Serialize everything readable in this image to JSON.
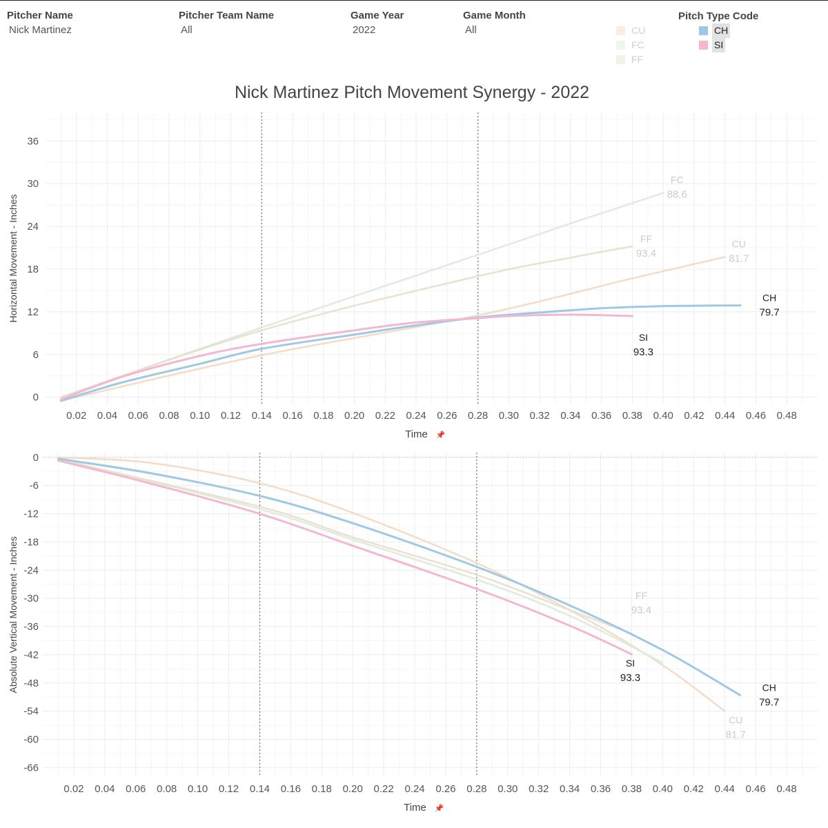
{
  "filters": [
    {
      "label": "Pitcher Name",
      "value": "Nick Martinez"
    },
    {
      "label": "Pitcher Team Name",
      "value": "All"
    },
    {
      "label": "Game Year",
      "value": "2022"
    },
    {
      "label": "Game Month",
      "value": "All"
    }
  ],
  "legend": {
    "title": "Pitch Type Code",
    "items": [
      {
        "code": "CU",
        "color": "#f2d9c2",
        "selected": false
      },
      {
        "code": "FC",
        "color": "#dceadb",
        "selected": false
      },
      {
        "code": "FF",
        "color": "#e7dfcd",
        "selected": false
      },
      {
        "code": "CH",
        "color": "#9fc8e4",
        "selected": true
      },
      {
        "code": "SI",
        "color": "#f3b7cf",
        "selected": true
      }
    ]
  },
  "pin_glyph": "📌",
  "chart_data": [
    {
      "type": "line",
      "title": "Nick Martinez Pitch Movement Synergy - 2022",
      "xlabel": "Time",
      "ylabel": "Horizontal Movement - Inches",
      "xlim": [
        0,
        0.5
      ],
      "ylim": [
        -1,
        40
      ],
      "xticks": [
        "0.02",
        "0.04",
        "0.06",
        "0.08",
        "0.10",
        "0.12",
        "0.14",
        "0.16",
        "0.18",
        "0.20",
        "0.22",
        "0.24",
        "0.26",
        "0.28",
        "0.30",
        "0.32",
        "0.34",
        "0.36",
        "0.38",
        "0.40",
        "0.42",
        "0.44",
        "0.46",
        "0.48"
      ],
      "yticks": [
        0,
        6,
        12,
        18,
        24,
        30,
        36
      ],
      "reference_lines_x": [
        0.14,
        0.28
      ],
      "series": [
        {
          "name": "CU",
          "speed": "81.7",
          "x": [
            0.01,
            0.14,
            0.28,
            0.38,
            0.44
          ],
          "y": [
            -0.5,
            5.9,
            11.5,
            16.7,
            19.7
          ]
        },
        {
          "name": "FC",
          "speed": "88.6",
          "x": [
            0.01,
            0.14,
            0.28,
            0.34,
            0.4
          ],
          "y": [
            0.0,
            9.8,
            20.0,
            24.4,
            28.7
          ]
        },
        {
          "name": "FF",
          "speed": "93.4",
          "x": [
            0.01,
            0.14,
            0.28,
            0.34,
            0.38
          ],
          "y": [
            0.0,
            9.4,
            17.0,
            19.6,
            21.2
          ]
        },
        {
          "name": "CH",
          "speed": "79.7",
          "x": [
            0.01,
            0.05,
            0.1,
            0.14,
            0.2,
            0.24,
            0.28,
            0.32,
            0.36,
            0.4,
            0.45
          ],
          "y": [
            -0.5,
            2.1,
            4.7,
            6.8,
            8.8,
            10.1,
            11.2,
            11.9,
            12.5,
            12.8,
            12.9
          ]
        },
        {
          "name": "SI",
          "speed": "93.3",
          "x": [
            0.01,
            0.05,
            0.1,
            0.14,
            0.2,
            0.24,
            0.28,
            0.3,
            0.34,
            0.38
          ],
          "y": [
            -0.3,
            2.9,
            5.8,
            7.5,
            9.4,
            10.5,
            11.1,
            11.4,
            11.6,
            11.4
          ]
        }
      ]
    },
    {
      "type": "line",
      "title": "",
      "xlabel": "Time",
      "ylabel": "Absolute Vertical Movement - Inches",
      "xlim": [
        0,
        0.5
      ],
      "ylim": [
        -68,
        1
      ],
      "xticks": [
        "0.02",
        "0.04",
        "0.06",
        "0.08",
        "0.10",
        "0.12",
        "0.14",
        "0.16",
        "0.18",
        "0.20",
        "0.22",
        "0.24",
        "0.26",
        "0.28",
        "0.30",
        "0.32",
        "0.34",
        "0.36",
        "0.38",
        "0.40",
        "0.42",
        "0.44",
        "0.46",
        "0.48"
      ],
      "yticks": [
        0,
        -6,
        -12,
        -18,
        -24,
        -30,
        -36,
        -42,
        -48,
        -54,
        -60,
        -66
      ],
      "reference_lines_x": [
        0.14,
        0.28
      ],
      "zero_line": true,
      "series": [
        {
          "name": "CU",
          "speed": "81.7",
          "x": [
            0.01,
            0.07,
            0.14,
            0.2,
            0.28,
            0.34,
            0.38,
            0.41,
            0.44
          ],
          "y": [
            0.0,
            -1.2,
            -5.5,
            -11.8,
            -22.5,
            -32.5,
            -40.0,
            -46.5,
            -54.0
          ]
        },
        {
          "name": "FC",
          "speed": "88.6",
          "x": [
            0.01,
            0.14,
            0.2,
            0.28,
            0.34,
            0.4
          ],
          "y": [
            -0.3,
            -11.0,
            -17.5,
            -26.0,
            -33.7,
            -43.7
          ]
        },
        {
          "name": "FF",
          "speed": "93.4",
          "x": [
            0.01,
            0.14,
            0.2,
            0.28,
            0.34,
            0.38
          ],
          "y": [
            -0.5,
            -10.5,
            -17.0,
            -25.0,
            -32.5,
            -37.5
          ]
        },
        {
          "name": "CH",
          "speed": "79.7",
          "x": [
            0.01,
            0.07,
            0.14,
            0.2,
            0.28,
            0.34,
            0.4,
            0.45
          ],
          "y": [
            -0.3,
            -3.4,
            -8.2,
            -14.0,
            -23.3,
            -31.5,
            -41.0,
            -50.6
          ]
        },
        {
          "name": "SI",
          "speed": "93.3",
          "x": [
            0.01,
            0.07,
            0.14,
            0.2,
            0.28,
            0.34,
            0.38
          ],
          "y": [
            -0.7,
            -5.6,
            -12.0,
            -18.8,
            -28.0,
            -35.8,
            -41.9
          ]
        }
      ]
    }
  ]
}
